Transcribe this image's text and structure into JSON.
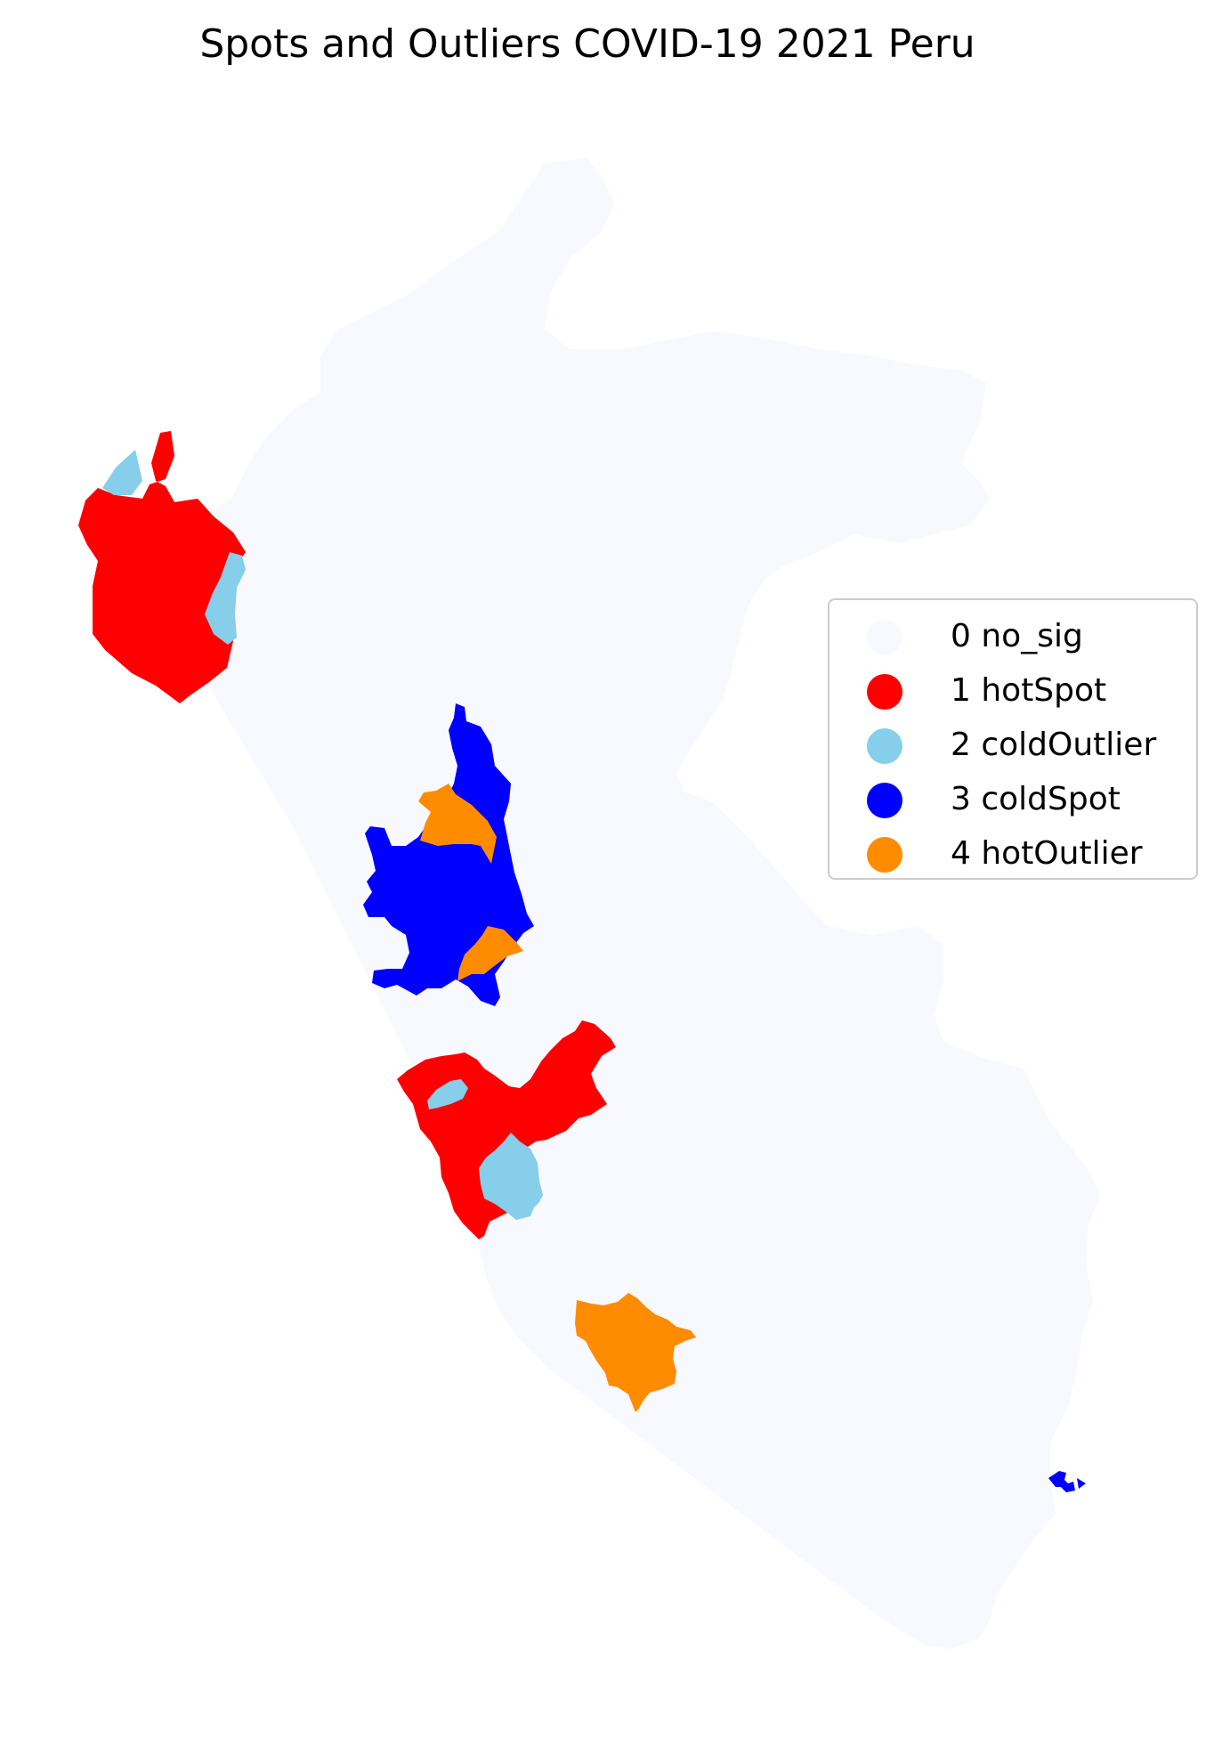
{
  "title": "Spots and Outliers COVID-19 2021 Peru",
  "legend": {
    "items": [
      {
        "label": "0 no_sig",
        "color": "#f8f8ff"
      },
      {
        "label": "1 hotSpot",
        "color": "#ff0000"
      },
      {
        "label": "2 coldOutlier",
        "color": "#87ceeb"
      },
      {
        "label": "3 coldSpot",
        "color": "#0000ff"
      },
      {
        "label": "4 hotOutlier",
        "color": "#ff8c00"
      }
    ]
  },
  "map": {
    "regions": [
      {
        "name": "peru-outline",
        "category": 0
      },
      {
        "name": "north-coast-hotspot",
        "category": 1
      },
      {
        "name": "north-coldoutlier-a",
        "category": 2
      },
      {
        "name": "north-coldoutlier-b",
        "category": 2
      },
      {
        "name": "central-coldspot",
        "category": 3
      },
      {
        "name": "central-hotoutlier-a",
        "category": 4
      },
      {
        "name": "central-hotoutlier-b",
        "category": 4
      },
      {
        "name": "south-central-hotspot",
        "category": 1
      },
      {
        "name": "south-central-coldoutlier-a",
        "category": 2
      },
      {
        "name": "south-central-coldoutlier-b",
        "category": 2
      },
      {
        "name": "south-hotoutlier",
        "category": 4
      },
      {
        "name": "southeast-coldspot",
        "category": 3
      }
    ]
  }
}
